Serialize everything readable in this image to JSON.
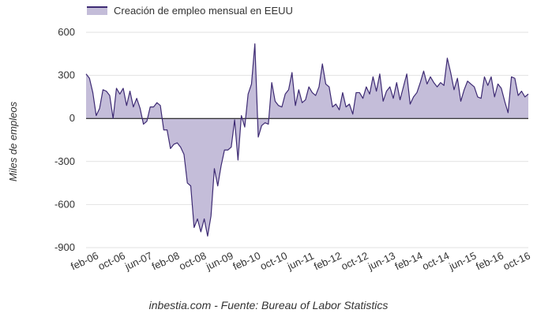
{
  "chart_data": {
    "type": "area",
    "title": "",
    "xlabel": "",
    "ylabel": "Miles de empleos",
    "ylim": [
      -900,
      600
    ],
    "yticks": [
      600,
      300,
      0,
      -300,
      -600,
      -900
    ],
    "ytick_labels": [
      "600",
      "300",
      "0",
      "-300",
      "-600",
      "-900"
    ],
    "xtick_labels": [
      "feb-06",
      "oct-06",
      "jun-07",
      "feb-08",
      "oct-08",
      "jun-09",
      "feb-10",
      "oct-10",
      "jun-11",
      "feb-12",
      "oct-12",
      "jun-13",
      "feb-14",
      "oct-14",
      "jun-15",
      "feb-16",
      "oct-16"
    ],
    "legend_position": "top-left",
    "series": [
      {
        "name": "Creación de empleo mensual en EEUU",
        "line_color": "#3d2a73",
        "fill_color": "#c4bdd9",
        "start": "feb-06",
        "values": [
          310,
          280,
          180,
          20,
          70,
          200,
          190,
          160,
          0,
          210,
          170,
          210,
          90,
          190,
          80,
          140,
          70,
          -40,
          -20,
          80,
          80,
          110,
          90,
          -80,
          -80,
          -210,
          -180,
          -170,
          -200,
          -250,
          -450,
          -470,
          -760,
          -700,
          -790,
          -700,
          -820,
          -680,
          -350,
          -470,
          -330,
          -220,
          -220,
          -200,
          -10,
          -290,
          20,
          -60,
          170,
          240,
          520,
          -130,
          -50,
          -30,
          -40,
          250,
          120,
          90,
          80,
          170,
          200,
          320,
          90,
          200,
          110,
          130,
          220,
          180,
          160,
          220,
          380,
          240,
          220,
          80,
          100,
          60,
          180,
          80,
          100,
          30,
          180,
          180,
          140,
          220,
          170,
          290,
          190,
          310,
          120,
          190,
          220,
          140,
          250,
          130,
          220,
          310,
          100,
          150,
          180,
          250,
          330,
          240,
          290,
          250,
          220,
          250,
          230,
          420,
          320,
          200,
          280,
          120,
          200,
          260,
          240,
          220,
          150,
          140,
          290,
          230,
          290,
          150,
          240,
          210,
          120,
          40,
          290,
          280,
          160,
          190,
          150,
          170
        ]
      }
    ]
  },
  "source_text": "inbestia.com - Fuente: Bureau of Labor Statistics"
}
